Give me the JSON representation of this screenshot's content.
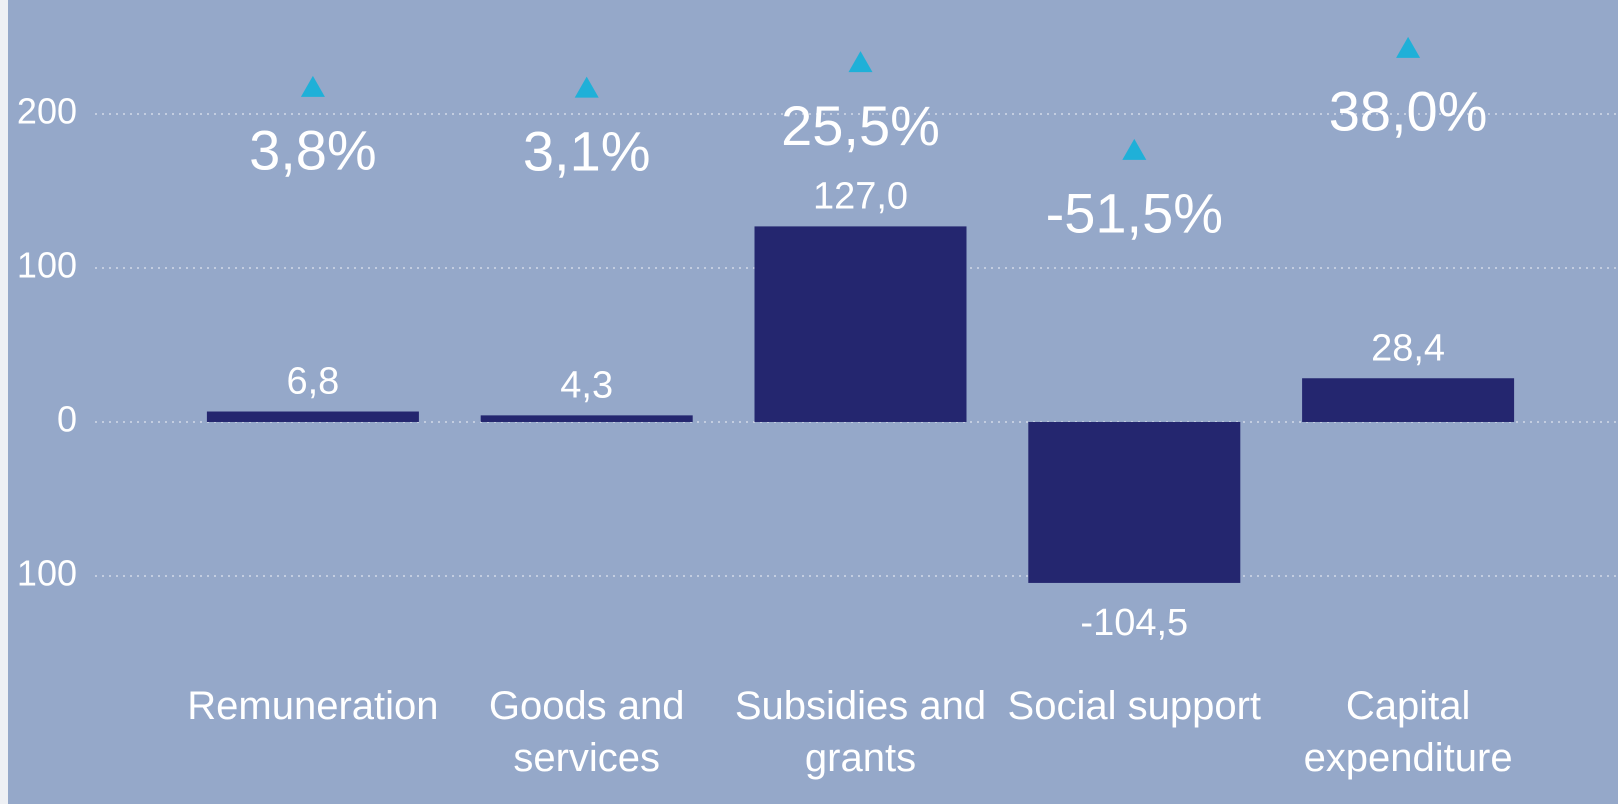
{
  "chart_data": {
    "type": "bar",
    "categories": [
      "Remuneration",
      "Goods and services",
      "Subsidies and grants",
      "Social support",
      "Capital expenditure"
    ],
    "series": [
      {
        "color": "#24266f",
        "values": [
          6.8,
          4.3,
          127.0,
          -104.5,
          28.4
        ],
        "value_labels": [
          "6,8",
          "4,3",
          "127,0",
          "-104,5",
          "28,4"
        ]
      },
      {
        "color": "#1fb0d8",
        "axis": "y2",
        "marker": "triangle",
        "values": [
          3.8,
          3.1,
          25.5,
          -51.5,
          38.0
        ],
        "value_labels": [
          "3,8%",
          "3,1%",
          "25,5%",
          "-51,5%",
          "38,0%"
        ]
      }
    ],
    "ylim": [
      -150,
      274
    ],
    "yticks": [
      200,
      100,
      0,
      {
        "value": -100,
        "label": "100"
      }
    ],
    "y2lim": [
      -493,
      80
    ],
    "grid": true
  }
}
